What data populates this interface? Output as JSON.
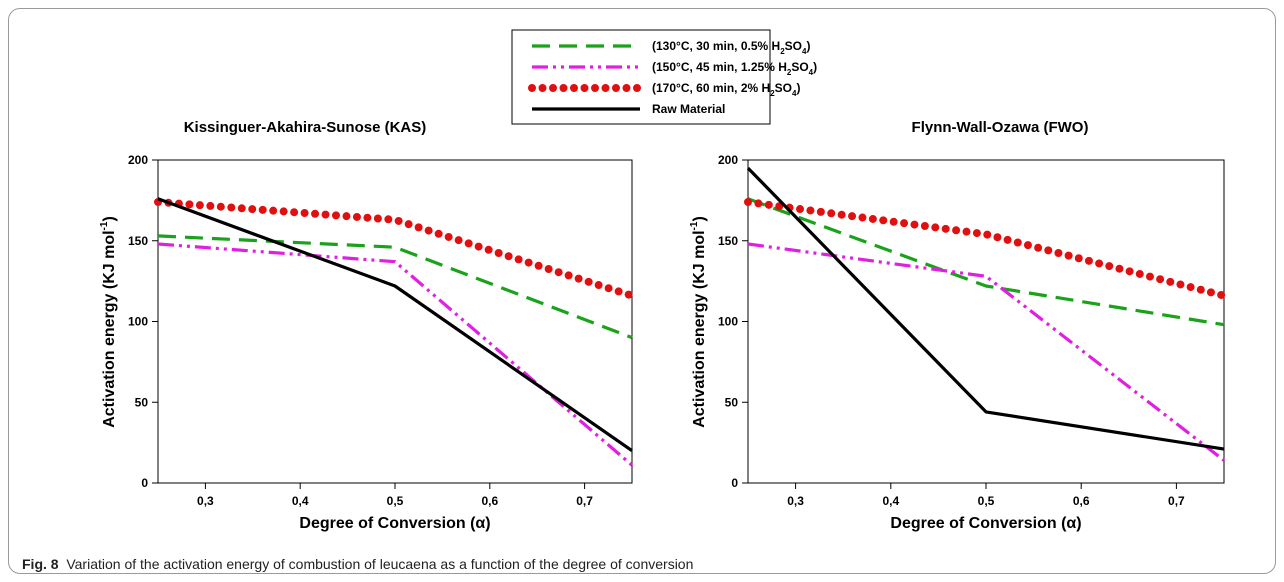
{
  "legend": {
    "entries": [
      {
        "key": "s130",
        "prefix": "(130°C, 30 min, 0.5% H",
        "sub2": "2",
        "mid": "SO",
        "sub4": "4",
        "suffix": ")"
      },
      {
        "key": "s150",
        "prefix": "(150°C, 45 min, 1.25% H",
        "sub2": "2",
        "mid": "SO",
        "sub4": "4",
        "suffix": ")"
      },
      {
        "key": "s170",
        "prefix": "(170°C, 60 min, 2% H",
        "sub2": "2",
        "mid": "SO",
        "sub4": "4",
        "suffix": ")"
      },
      {
        "key": "raw",
        "text": "Raw Material"
      }
    ]
  },
  "colors": {
    "s130": "#1aa31a",
    "s150": "#e020e0",
    "s170": "#e01010",
    "raw": "#000000"
  },
  "caption": {
    "label": "Fig. 8",
    "text": "Variation of the activation energy of combustion of leucaena as a function of the degree of conversion"
  },
  "chart_data": [
    {
      "type": "line",
      "title": "Kissinguer-Akahira-Sunose (KAS)",
      "xlabel": "Degree of Conversion (α)",
      "ylabel": "Activation energy (KJ mol-1)",
      "xlim": [
        0.25,
        0.75
      ],
      "ylim": [
        0,
        200
      ],
      "x_ticks": [
        "0,3",
        "0,4",
        "0,5",
        "0,6",
        "0,7"
      ],
      "y_ticks": [
        "0",
        "50",
        "100",
        "150",
        "200"
      ],
      "x": [
        0.25,
        0.5,
        0.75
      ],
      "series": [
        {
          "key": "s130",
          "values": [
            153,
            146,
            90
          ]
        },
        {
          "key": "s150",
          "values": [
            148,
            137,
            11
          ]
        },
        {
          "key": "s170",
          "values": [
            174,
            163,
            116
          ]
        },
        {
          "key": "raw",
          "values": [
            176,
            122,
            20
          ]
        }
      ]
    },
    {
      "type": "line",
      "title": "Flynn-Wall-Ozawa (FWO)",
      "xlabel": "Degree of Conversion (α)",
      "ylabel": "Activation energy (KJ mol-1)",
      "xlim": [
        0.25,
        0.75
      ],
      "ylim": [
        0,
        200
      ],
      "x_ticks": [
        "0,3",
        "0,4",
        "0,5",
        "0,6",
        "0,7"
      ],
      "y_ticks": [
        "0",
        "50",
        "100",
        "150",
        "200"
      ],
      "x": [
        0.25,
        0.5,
        0.75
      ],
      "series": [
        {
          "key": "s130",
          "values": [
            176,
            122,
            98
          ]
        },
        {
          "key": "s150",
          "values": [
            148,
            128,
            14
          ]
        },
        {
          "key": "s170",
          "values": [
            174,
            154,
            116
          ]
        },
        {
          "key": "raw",
          "values": [
            195,
            44,
            21
          ]
        }
      ]
    }
  ]
}
